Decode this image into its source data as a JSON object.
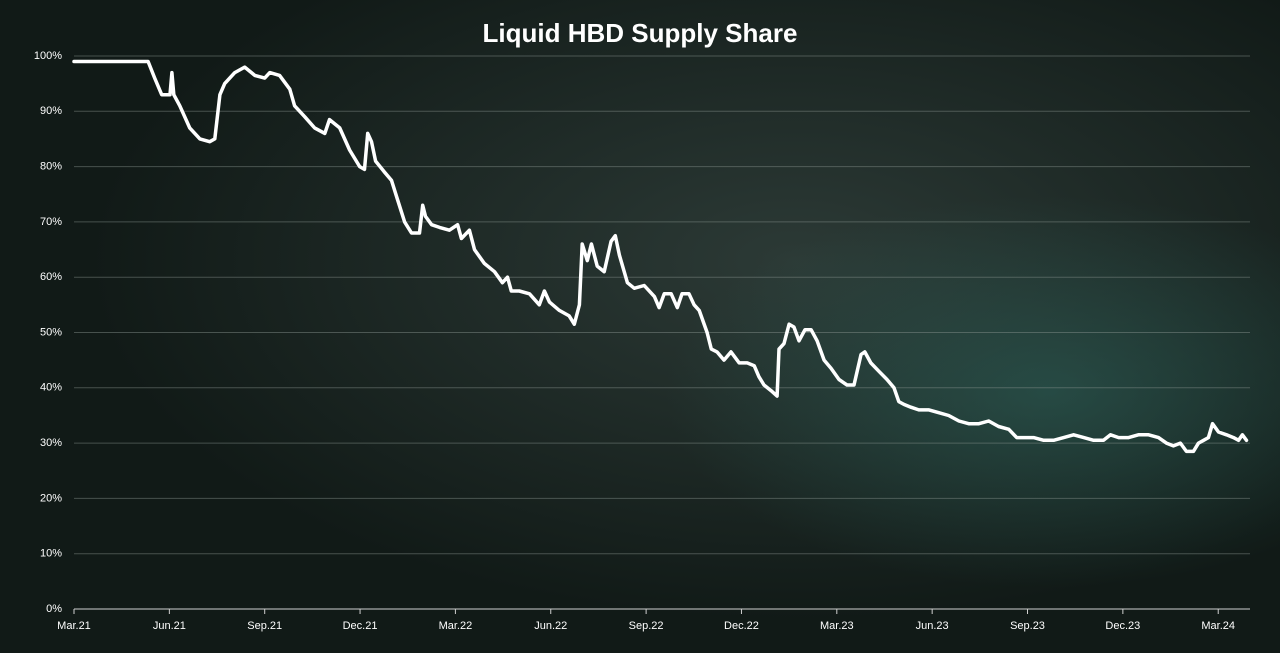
{
  "chart_data": {
    "type": "line",
    "title": "Liquid HBD Supply Share",
    "color": "#ffffff",
    "grid": true,
    "x": [
      0,
      2.33,
      2.54,
      2.76,
      3.02,
      3.08,
      3.14,
      3.33,
      3.64,
      3.96,
      4.27,
      4.43,
      4.59,
      4.74,
      5.06,
      5.37,
      5.69,
      6.0,
      6.16,
      6.47,
      6.79,
      6.94,
      7.26,
      7.57,
      7.89,
      8.04,
      8.36,
      8.67,
      8.99,
      9.14,
      9.24,
      9.36,
      9.49,
      9.77,
      9.99,
      10.18,
      10.4,
      10.62,
      10.87,
      10.97,
      11.06,
      11.25,
      11.5,
      11.81,
      12.07,
      12.19,
      12.44,
      12.6,
      12.91,
      13.23,
      13.48,
      13.64,
      13.76,
      14.01,
      14.33,
      14.64,
      14.8,
      14.96,
      15.27,
      15.58,
      15.74,
      15.9,
      15.99,
      16.15,
      16.28,
      16.46,
      16.68,
      16.9,
      17.03,
      17.16,
      17.41,
      17.63,
      17.94,
      18.26,
      18.41,
      18.57,
      18.79,
      18.98,
      19.13,
      19.35,
      19.51,
      19.67,
      19.92,
      20.05,
      20.23,
      20.45,
      20.67,
      20.93,
      21.18,
      21.4,
      21.55,
      21.71,
      21.93,
      22.12,
      22.18,
      22.34,
      22.5,
      22.65,
      22.81,
      23.0,
      23.19,
      23.38,
      23.6,
      23.82,
      24.07,
      24.32,
      24.54,
      24.76,
      24.88,
      25.07,
      25.32,
      25.58,
      25.8,
      25.95,
      26.11,
      26.33,
      26.58,
      26.9,
      27.21,
      27.52,
      27.84,
      28.15,
      28.47,
      28.78,
      29.09,
      29.41,
      29.66,
      29.88,
      30.19,
      30.51,
      30.82,
      31.14,
      31.45,
      31.77,
      32.08,
      32.39,
      32.61,
      32.87,
      33.18,
      33.49,
      33.81,
      34.12,
      34.37,
      34.59,
      34.81,
      35.0,
      35.22,
      35.38,
      35.54,
      35.69,
      35.82,
      36.01,
      36.26,
      36.48,
      36.64,
      36.76,
      36.89
    ],
    "values": [
      99,
      99,
      96,
      93,
      93,
      97,
      93,
      91,
      87,
      85,
      84.5,
      85,
      93,
      95,
      97,
      98,
      96.5,
      96,
      97,
      96.5,
      94,
      91,
      89,
      87,
      86,
      88.5,
      87,
      83,
      80,
      79.5,
      86,
      84.5,
      81,
      79,
      77.5,
      74,
      70,
      68,
      68,
      73,
      71,
      69.5,
      69,
      68.5,
      69.5,
      67,
      68.5,
      65,
      62.5,
      61,
      59,
      60,
      57.5,
      57.5,
      57,
      55,
      57.5,
      55.5,
      54,
      53,
      51.5,
      55,
      66,
      63,
      66,
      62,
      61,
      66.5,
      67.5,
      64,
      59,
      58,
      58.5,
      56.5,
      54.5,
      57,
      57,
      54.5,
      57,
      57,
      55,
      54,
      50,
      47,
      46.5,
      45,
      46.5,
      44.5,
      44.5,
      44,
      42,
      40.5,
      39.5,
      38.5,
      47,
      48,
      51.5,
      51,
      48.5,
      50.5,
      50.5,
      48.5,
      45,
      43.5,
      41.5,
      40.5,
      40.5,
      46,
      46.5,
      44.5,
      43,
      41.5,
      40,
      37.5,
      37,
      36.5,
      36,
      36,
      35.5,
      35,
      34,
      33.5,
      33.5,
      34,
      33,
      32.5,
      31,
      31,
      31,
      30.5,
      30.5,
      31,
      31.5,
      31,
      30.5,
      30.5,
      31.5,
      31,
      31,
      31.5,
      31.5,
      31,
      30,
      29.5,
      30,
      28.5,
      28.5,
      30,
      30.5,
      31,
      33.5,
      32,
      31.5,
      31,
      30.5,
      31.5,
      30.5
    ],
    "xlim": [
      0,
      37
    ],
    "xticks": [
      {
        "value": 0,
        "label": "Mar.21"
      },
      {
        "value": 3,
        "label": "Jun.21"
      },
      {
        "value": 6,
        "label": "Sep.21"
      },
      {
        "value": 9,
        "label": "Dec.21"
      },
      {
        "value": 12,
        "label": "Mar.22"
      },
      {
        "value": 15,
        "label": "Jun.22"
      },
      {
        "value": 18,
        "label": "Sep.22"
      },
      {
        "value": 21,
        "label": "Dec.22"
      },
      {
        "value": 24,
        "label": "Mar.23"
      },
      {
        "value": 27,
        "label": "Jun.23"
      },
      {
        "value": 30,
        "label": "Sep.23"
      },
      {
        "value": 33,
        "label": "Dec.23"
      },
      {
        "value": 36,
        "label": "Mar.24"
      }
    ],
    "ylim": [
      0,
      100
    ],
    "yticks": [
      {
        "value": 0,
        "label": "0%"
      },
      {
        "value": 10,
        "label": "10%"
      },
      {
        "value": 20,
        "label": "20%"
      },
      {
        "value": 30,
        "label": "30%"
      },
      {
        "value": 40,
        "label": "40%"
      },
      {
        "value": 50,
        "label": "50%"
      },
      {
        "value": 60,
        "label": "60%"
      },
      {
        "value": 70,
        "label": "70%"
      },
      {
        "value": 80,
        "label": "80%"
      },
      {
        "value": 90,
        "label": "90%"
      },
      {
        "value": 100,
        "label": "100%"
      }
    ]
  }
}
